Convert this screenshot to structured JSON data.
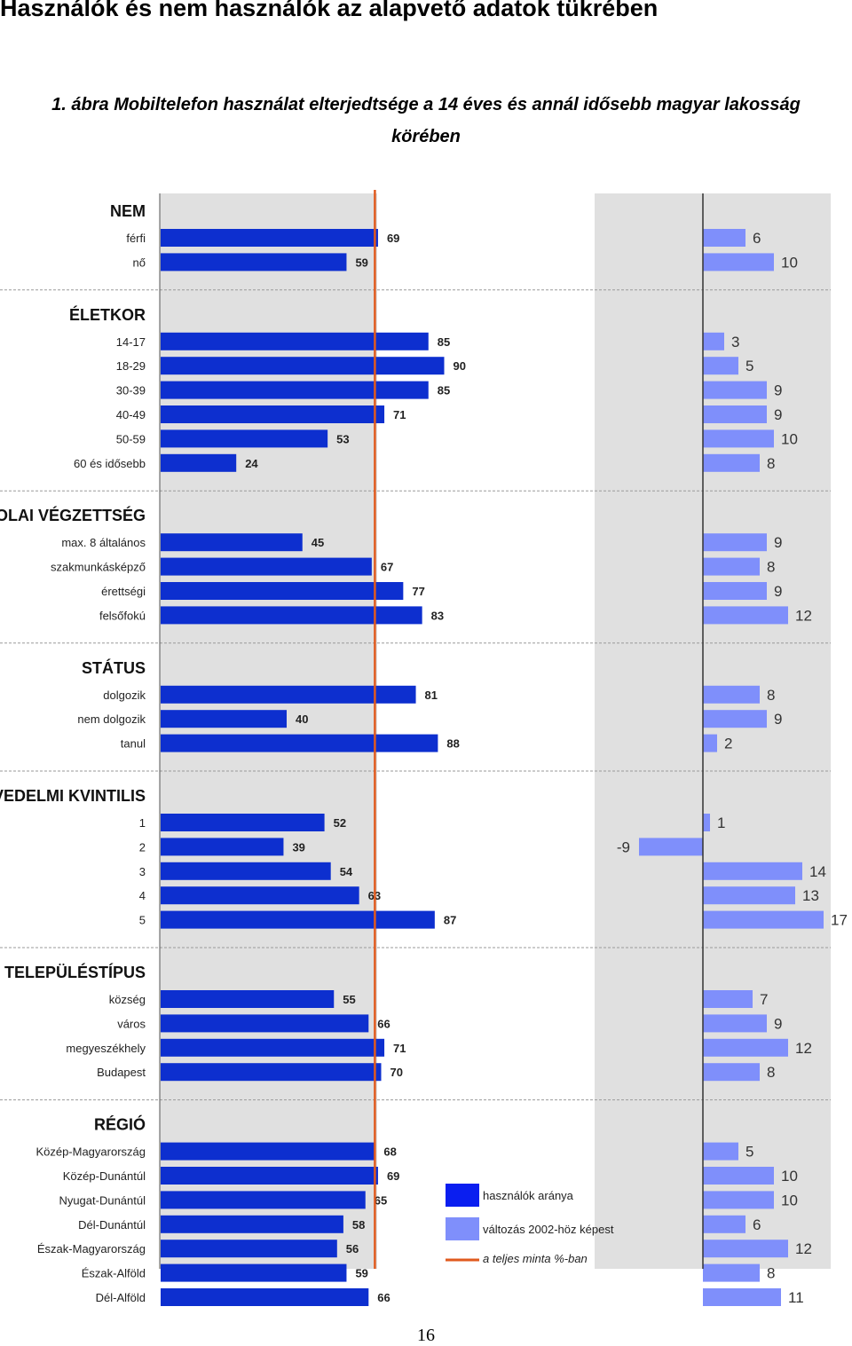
{
  "page_heading": "Használók és nem használók az alapvető adatok tükrében",
  "figure_caption": "1. ábra Mobiltelefon használat elterjedtsége a 14 éves és annál idősebb magyar lakosság körében",
  "page_number": "16",
  "colors": {
    "users_bar": "#0d2fcf",
    "change_bar": "#7f8ffb",
    "reference_line": "#e05a1e",
    "panel_bg": "#e0e0e0",
    "separator": "#9a9a9a"
  },
  "chart_data": {
    "type": "bar",
    "orientation": "horizontal",
    "reference_value": 68,
    "legend": {
      "placement": "bottom-center",
      "items": [
        {
          "label": "használók aránya",
          "kind": "bar",
          "series": "users"
        },
        {
          "label": "változás 2002-höz képest",
          "kind": "bar",
          "series": "change"
        },
        {
          "label": "a teljes minta %-ban",
          "kind": "line",
          "series": "reference"
        }
      ]
    },
    "groups": [
      {
        "title": "NEM",
        "rows": [
          {
            "label": "férfi",
            "users": 69,
            "change": 6
          },
          {
            "label": "nő",
            "users": 59,
            "change": 10
          }
        ]
      },
      {
        "title": "ÉLETKOR",
        "rows": [
          {
            "label": "14-17",
            "users": 85,
            "change": 3
          },
          {
            "label": "18-29",
            "users": 90,
            "change": 5
          },
          {
            "label": "30-39",
            "users": 85,
            "change": 9
          },
          {
            "label": "40-49",
            "users": 71,
            "change": 9
          },
          {
            "label": "50-59",
            "users": 53,
            "change": 10
          },
          {
            "label": "60 és idősebb",
            "users": 24,
            "change": 8
          }
        ]
      },
      {
        "title": "ISKOLAI VÉGZETTSÉG",
        "rows": [
          {
            "label": "max. 8 általános",
            "users": 45,
            "change": 9
          },
          {
            "label": "szakmunkásképző",
            "users": 67,
            "change": 8
          },
          {
            "label": "érettségi",
            "users": 77,
            "change": 9
          },
          {
            "label": "felsőfokú",
            "users": 83,
            "change": 12
          }
        ]
      },
      {
        "title": "STÁTUS",
        "rows": [
          {
            "label": "dolgozik",
            "users": 81,
            "change": 8
          },
          {
            "label": "nem dolgozik",
            "users": 40,
            "change": 9
          },
          {
            "label": "tanul",
            "users": 88,
            "change": 2
          }
        ]
      },
      {
        "title": "JÖVEDELMI KVINTILIS",
        "rows": [
          {
            "label": "1",
            "users": 52,
            "change": 1
          },
          {
            "label": "2",
            "users": 39,
            "change": -9
          },
          {
            "label": "3",
            "users": 54,
            "change": 14
          },
          {
            "label": "4",
            "users": 63,
            "change": 13
          },
          {
            "label": "5",
            "users": 87,
            "change": 17
          }
        ]
      },
      {
        "title": "TELEPÜLÉSTÍPUS",
        "rows": [
          {
            "label": "község",
            "users": 55,
            "change": 7
          },
          {
            "label": "város",
            "users": 66,
            "change": 9
          },
          {
            "label": "megyeszékhely",
            "users": 71,
            "change": 12
          },
          {
            "label": "Budapest",
            "users": 70,
            "change": 8
          }
        ]
      },
      {
        "title": "RÉGIÓ",
        "rows": [
          {
            "label": "Közép-Magyarország",
            "users": 68,
            "change": 5
          },
          {
            "label": "Közép-Dunántúl",
            "users": 69,
            "change": 10
          },
          {
            "label": "Nyugat-Dunántúl",
            "users": 65,
            "change": 10
          },
          {
            "label": "Dél-Dunántúl",
            "users": 58,
            "change": 6
          },
          {
            "label": "Észak-Magyarország",
            "users": 56,
            "change": 12
          },
          {
            "label": "Észak-Alföld",
            "users": 59,
            "change": 8
          },
          {
            "label": "Dél-Alföld",
            "users": 66,
            "change": 11
          }
        ]
      }
    ]
  }
}
